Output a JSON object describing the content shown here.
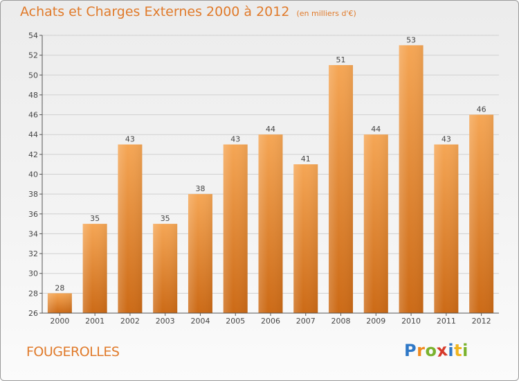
{
  "title": "Achats et Charges Externes 2000 à 2012",
  "subtitle": "(en milliers d'€)",
  "place_name": "FOUGEROLLES",
  "logo": {
    "text": "Proxiti",
    "letter_colors": [
      "#2f78c7",
      "#f08a1f",
      "#7ab22d",
      "#d63a2b",
      "#2f78c7",
      "#f0b41f",
      "#7ab22d"
    ]
  },
  "colors": {
    "bar_light": "#f5a655",
    "bar_dark": "#cc6a16",
    "title": "#e07a2a",
    "grid": "#d0d0d0",
    "axis": "#555555",
    "label": "#444444"
  },
  "chart_data": {
    "type": "bar",
    "categories": [
      "2000",
      "2001",
      "2002",
      "2003",
      "2004",
      "2005",
      "2006",
      "2007",
      "2008",
      "2009",
      "2010",
      "2011",
      "2012"
    ],
    "values": [
      28,
      35,
      43,
      35,
      38,
      43,
      44,
      41,
      51,
      44,
      53,
      43,
      46
    ],
    "data_labels": [
      "28",
      "35",
      "43",
      "35",
      "38",
      "43",
      "44",
      "41",
      "51",
      "44",
      "53",
      "43",
      "46"
    ],
    "title": "Achats et Charges Externes 2000 à 2012",
    "subtitle": "(en milliers d'€)",
    "xlabel": "",
    "ylabel": "",
    "ylim": [
      26,
      54
    ],
    "yticks": [
      26,
      28,
      30,
      32,
      34,
      36,
      38,
      40,
      42,
      44,
      46,
      48,
      50,
      52,
      54
    ],
    "grid": "horizontal",
    "legend": "none"
  }
}
